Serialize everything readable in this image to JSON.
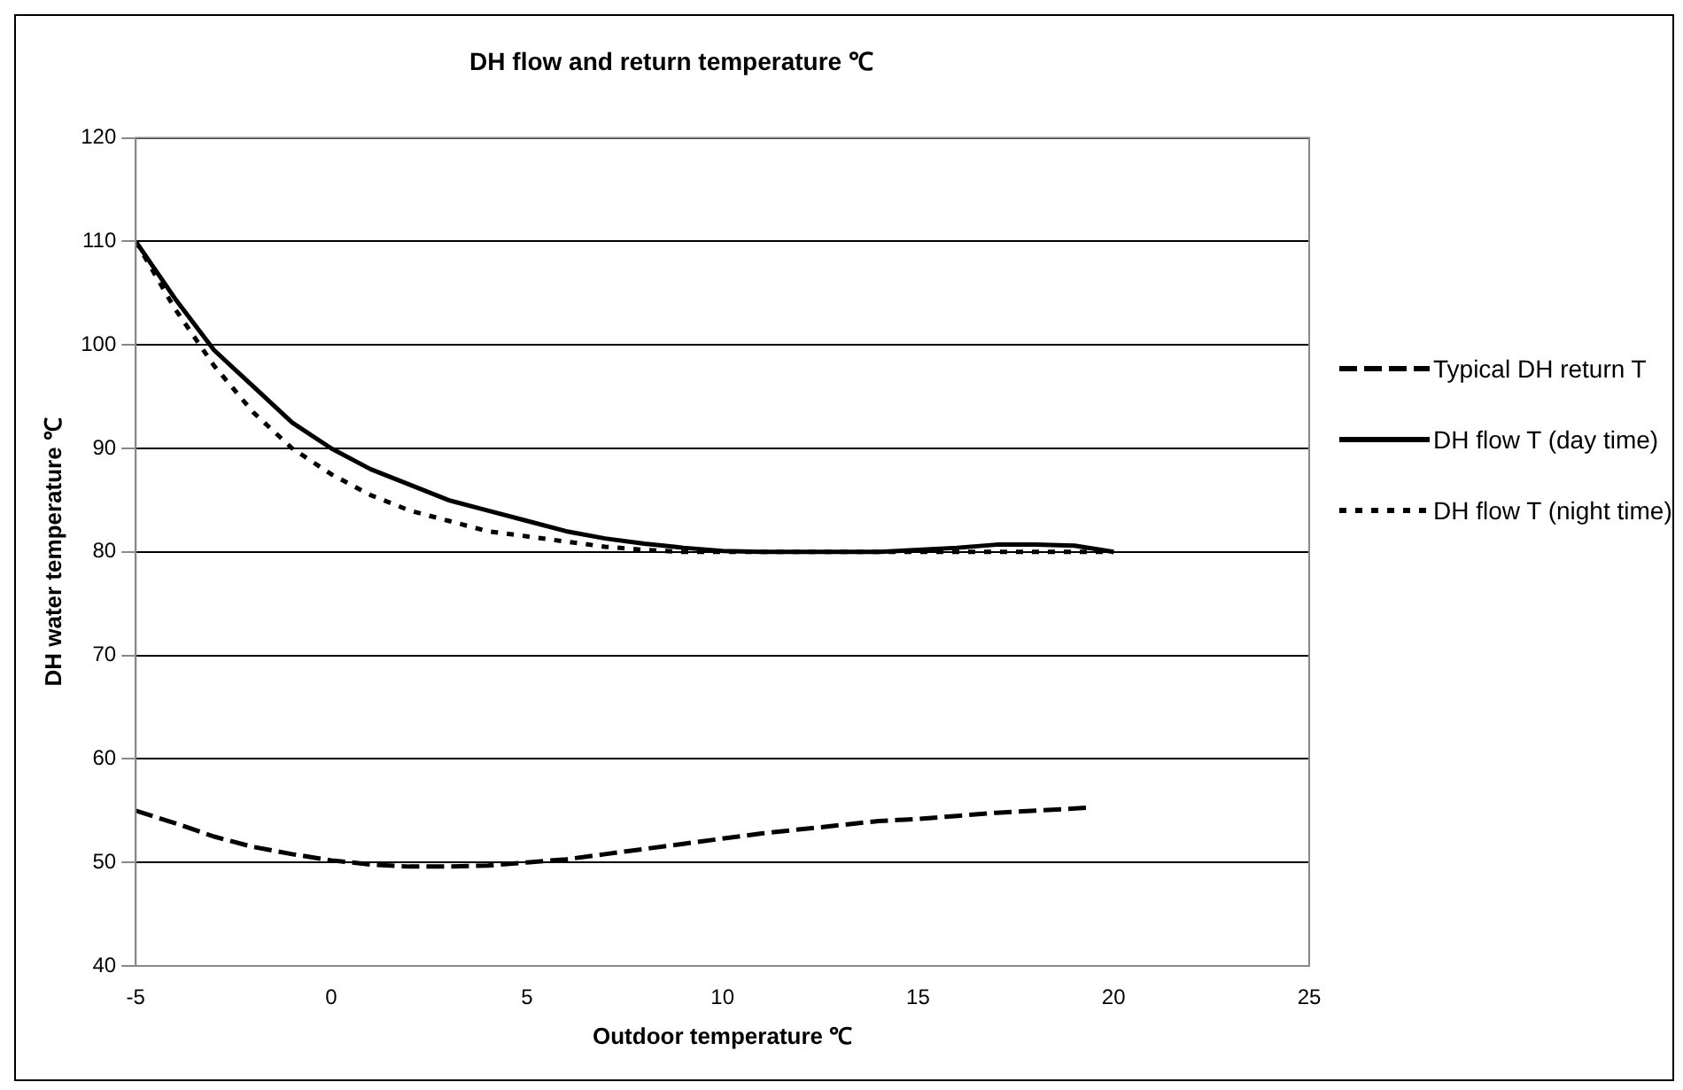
{
  "chart_data": {
    "type": "line",
    "title": "DH flow and return temperature ℃",
    "xlabel": "Outdoor temperature ℃",
    "ylabel": "DH water temperature ℃",
    "xlim": [
      -5,
      25
    ],
    "xticks": [
      -5,
      0,
      5,
      10,
      15,
      20,
      25
    ],
    "ylim": [
      40,
      120
    ],
    "yticks": [
      40,
      50,
      60,
      70,
      80,
      90,
      100,
      110,
      120
    ],
    "grid": "y",
    "legend": "right",
    "marker": "none",
    "series": [
      {
        "name": "Typical DH return T",
        "color": "#000000",
        "line_style": "dashed",
        "x": [
          -5,
          -4,
          -3,
          -2,
          -1,
          0,
          1,
          2,
          3,
          4,
          5,
          6,
          7,
          8,
          9,
          10,
          11,
          12,
          13,
          14,
          15,
          16,
          17,
          18,
          19.4
        ],
        "values": [
          55,
          53.8,
          52.5,
          51.5,
          50.8,
          50.2,
          49.8,
          49.6,
          49.6,
          49.7,
          50,
          50.3,
          50.8,
          51.3,
          51.8,
          52.3,
          52.8,
          53.2,
          53.6,
          54,
          54.2,
          54.5,
          54.8,
          55,
          55.3
        ]
      },
      {
        "name": "DH flow T (day time)",
        "color": "#000000",
        "line_style": "solid",
        "x": [
          -5,
          -4,
          -3,
          -2,
          -1,
          0,
          1,
          2,
          3,
          4,
          5,
          6,
          7,
          8,
          9,
          10,
          11,
          12,
          13,
          14,
          15,
          16,
          17,
          18,
          19,
          20
        ],
        "values": [
          110,
          104.5,
          99.5,
          96,
          92.5,
          90,
          88,
          86.5,
          85,
          84,
          83,
          82,
          81.3,
          80.8,
          80.4,
          80.1,
          80,
          80,
          80,
          80,
          80.2,
          80.4,
          80.7,
          80.7,
          80.6,
          80
        ]
      },
      {
        "name": "DH flow T (night time)",
        "color": "#000000",
        "line_style": "dotted",
        "x": [
          -5,
          -4,
          -3,
          -2,
          -1,
          0,
          1,
          2,
          3,
          4,
          5,
          6,
          7,
          8,
          9,
          10,
          11,
          12,
          13,
          14,
          15,
          16,
          17,
          18,
          19,
          20
        ],
        "values": [
          110,
          103.5,
          98,
          93.5,
          90,
          87.5,
          85.5,
          84,
          83,
          82,
          81.5,
          81,
          80.5,
          80.2,
          80,
          80,
          80,
          80,
          80,
          80,
          80,
          80,
          80,
          80,
          80,
          80
        ]
      }
    ]
  }
}
